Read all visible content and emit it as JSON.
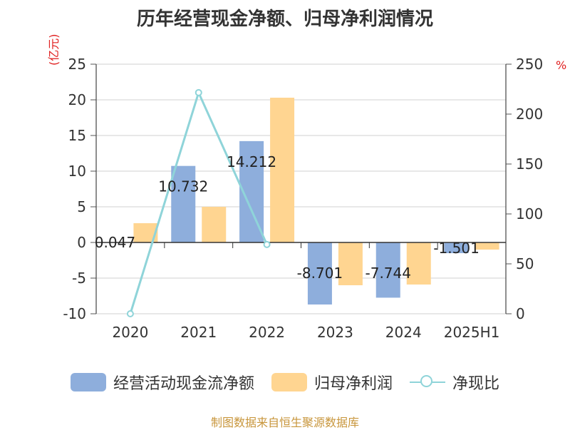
{
  "title": "历年经营现金净额、归母净利润情况",
  "y_left_unit": "(亿元)",
  "y_right_unit": "%",
  "source": "制图数据来自恒生聚源数据库",
  "colors": {
    "cash": "#8eaedc",
    "profit": "#ffd591",
    "ratio": "#8fd4d9"
  },
  "chart_data": {
    "type": "bar",
    "categories": [
      "2020",
      "2021",
      "2022",
      "2023",
      "2024",
      "2025H1"
    ],
    "series": [
      {
        "name": "经营活动现金流净额",
        "type": "bar",
        "axis": "left",
        "values": [
          0.047,
          10.732,
          14.212,
          -8.701,
          -7.744,
          -1.501
        ],
        "labels": [
          "0.047",
          "10.732",
          "14.212",
          "-8.701",
          "-7.744",
          "-1.501"
        ]
      },
      {
        "name": "归母净利润",
        "type": "bar",
        "axis": "left",
        "values": [
          2.7,
          5.0,
          20.3,
          -6.0,
          -5.9,
          -1.0
        ]
      },
      {
        "name": "净现比",
        "type": "line",
        "axis": "right",
        "values": [
          0.0,
          221.5,
          69.4,
          null,
          null,
          null
        ]
      }
    ],
    "y_left": {
      "min": -10,
      "max": 25,
      "ticks": [
        "-10",
        "-5",
        "0",
        "5",
        "10",
        "15",
        "20",
        "25"
      ]
    },
    "y_right": {
      "min": 0,
      "max": 250,
      "ticks": [
        "0",
        "50",
        "100",
        "150",
        "200",
        "250"
      ]
    },
    "grid": true,
    "legend_position": "bottom"
  }
}
